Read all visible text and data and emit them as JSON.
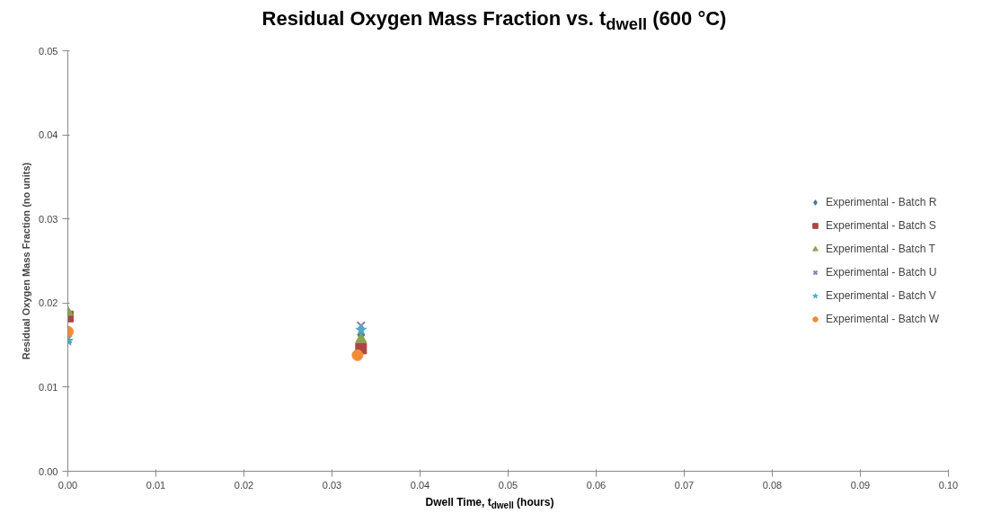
{
  "chart_data": {
    "type": "scatter",
    "title": "Residual Oxygen Mass Fraction vs. t$_{dwell}$ (600 °C)",
    "xlabel": "Dwell Time, t$_{dwell}$ (hours)",
    "ylabel": "Residual Oxygen Mass Fraction (no units)",
    "xlim": [
      0,
      0.1
    ],
    "xticks": [
      {
        "value": 0,
        "label": "0.00"
      },
      {
        "value": 0.01,
        "label": "0.01"
      },
      {
        "value": 0.02,
        "label": "0.02"
      },
      {
        "value": 0.03,
        "label": "0.03"
      },
      {
        "value": 0.04,
        "label": "0.04"
      },
      {
        "value": 0.05,
        "label": "0.05"
      },
      {
        "value": 0.06,
        "label": "0.06"
      },
      {
        "value": 0.07,
        "label": "0.07"
      },
      {
        "value": 0.08,
        "label": "0.08"
      },
      {
        "value": 0.09,
        "label": "0.09"
      },
      {
        "value": 0.1,
        "label": "0.10"
      }
    ],
    "ylim": [
      0,
      0.05
    ],
    "yticks": [
      {
        "value": 0,
        "label": "0.00"
      },
      {
        "value": 0.01,
        "label": "0.01"
      },
      {
        "value": 0.02,
        "label": "0.02"
      },
      {
        "value": 0.03,
        "label": "0.03"
      },
      {
        "value": 0.04,
        "label": "0.04"
      },
      {
        "value": 0.05,
        "label": "0.05"
      }
    ],
    "grid": false,
    "legend": "right",
    "series": [
      {
        "name": "Experimental - Batch R",
        "color": "#4572a7",
        "marker": "diamond",
        "x": [
          0.0333
        ],
        "values": [
          0.0162
        ]
      },
      {
        "name": "Experimental - Batch S",
        "color": "#aa4643",
        "marker": "square",
        "x": [
          0,
          0.0333
        ],
        "values": [
          0.0184,
          0.0146
        ]
      },
      {
        "name": "Experimental - Batch T",
        "color": "#89a54e",
        "marker": "triangle",
        "x": [
          0,
          0.0333
        ],
        "values": [
          0.0189,
          0.0157
        ]
      },
      {
        "name": "Experimental - Batch U",
        "color": "#8c7fb0",
        "marker": "cross",
        "x": [
          0,
          0.0333
        ],
        "values": [
          0.0157,
          0.0173
        ]
      },
      {
        "name": "Experimental - Batch V",
        "color": "#4bacc6",
        "marker": "star",
        "x": [
          0,
          0.0333
        ],
        "values": [
          0.0155,
          0.0168
        ]
      },
      {
        "name": "Experimental - Batch W",
        "color": "#f08c34",
        "marker": "circle",
        "x": [
          0,
          0.0329
        ],
        "values": [
          0.0166,
          0.0138
        ]
      }
    ]
  }
}
